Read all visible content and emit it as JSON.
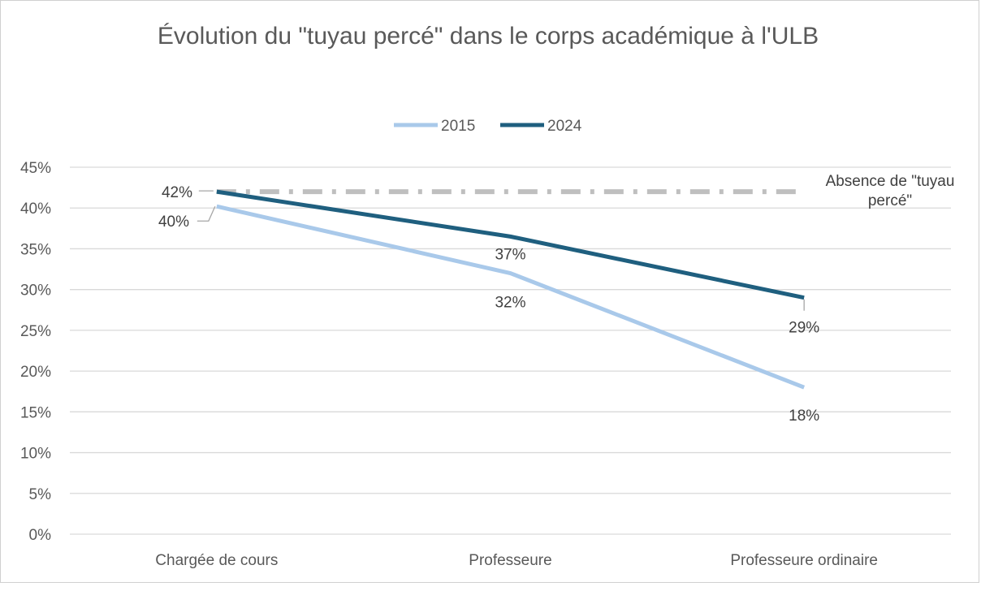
{
  "chart_data": {
    "type": "line",
    "title": "Évolution du \"tuyau percé\" dans le corps académique à l'ULB",
    "categories": [
      "Chargée de cours",
      "Professeure",
      "Professeure ordinaire"
    ],
    "series": [
      {
        "name": "2015",
        "values": [
          40.2,
          32,
          18
        ],
        "labels": [
          "40%",
          "32%",
          "18%"
        ],
        "color": "#a9c9ea"
      },
      {
        "name": "2024",
        "values": [
          42,
          36.5,
          29
        ],
        "labels": [
          "42%",
          "37%",
          "29%"
        ],
        "color": "#1f5f7f"
      }
    ],
    "reference_line": {
      "value": 42,
      "label": "Absence de \"tuyau percé\"",
      "color": "#bfbfbf",
      "style": "dash-dot"
    },
    "y_tick_labels": [
      "0%",
      "5%",
      "10%",
      "15%",
      "20%",
      "25%",
      "30%",
      "35%",
      "40%",
      "45%"
    ],
    "ylim": [
      0,
      45
    ],
    "y_step": 5,
    "grid": true,
    "legend_position": "top"
  }
}
